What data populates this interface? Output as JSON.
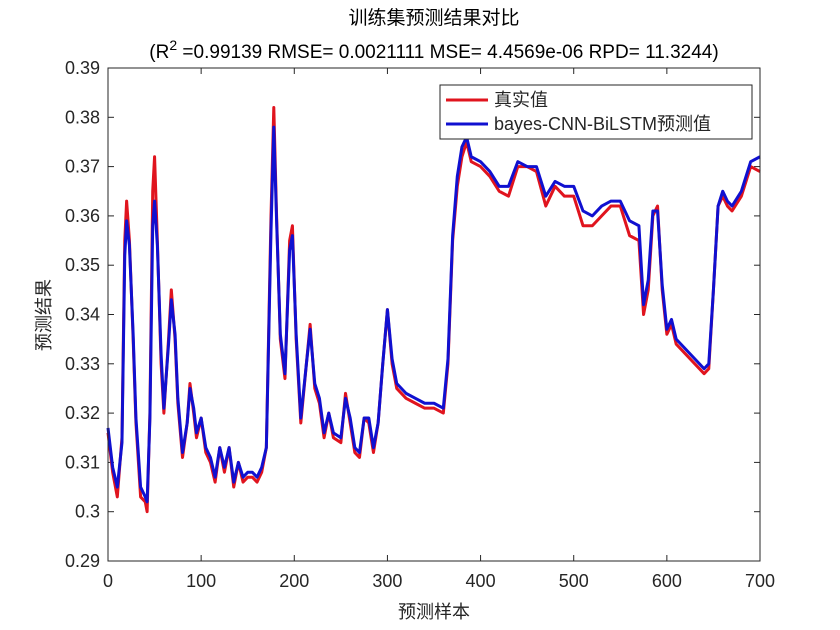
{
  "chart_data": {
    "type": "line",
    "title": "训练集预测结果对比",
    "subtitle": [
      "(R",
      "2",
      " =0.99139 RMSE= 0.0021111 MSE= 4.4569e-06 RPD= 11.3244)"
    ],
    "x_label": "预测样本",
    "y_label": "预测结果",
    "xlim": [
      0,
      700
    ],
    "xticks": [
      0,
      100,
      200,
      300,
      400,
      500,
      600,
      700
    ],
    "ylim": [
      0.29,
      0.39
    ],
    "yticks": [
      0.29,
      0.3,
      0.31,
      0.32,
      0.33,
      0.34,
      0.35,
      0.36,
      0.37,
      0.38,
      0.39
    ],
    "legend": "northeast",
    "grid": false,
    "x": [
      0,
      5,
      10,
      15,
      18,
      20,
      23,
      27,
      30,
      35,
      40,
      42,
      45,
      48,
      50,
      53,
      57,
      60,
      65,
      68,
      72,
      75,
      80,
      85,
      88,
      92,
      95,
      100,
      105,
      110,
      115,
      120,
      125,
      130,
      135,
      140,
      145,
      150,
      155,
      160,
      165,
      170,
      175,
      178,
      181,
      185,
      190,
      195,
      198,
      202,
      207,
      213,
      217,
      222,
      227,
      232,
      237,
      242,
      250,
      255,
      260,
      265,
      270,
      275,
      280,
      285,
      290,
      295,
      300,
      305,
      310,
      320,
      330,
      340,
      350,
      360,
      365,
      370,
      375,
      380,
      385,
      390,
      400,
      410,
      420,
      430,
      440,
      450,
      460,
      470,
      480,
      490,
      500,
      510,
      520,
      530,
      540,
      550,
      560,
      570,
      575,
      580,
      585,
      590,
      595,
      600,
      605,
      610,
      620,
      630,
      640,
      645,
      650,
      655,
      660,
      665,
      670,
      680,
      690,
      700
    ],
    "series": [
      {
        "name": "真实值",
        "color": "#e0141e",
        "values": [
          0.316,
          0.308,
          0.303,
          0.315,
          0.355,
          0.363,
          0.355,
          0.335,
          0.318,
          0.303,
          0.302,
          0.3,
          0.32,
          0.365,
          0.372,
          0.355,
          0.33,
          0.32,
          0.335,
          0.345,
          0.335,
          0.322,
          0.311,
          0.318,
          0.326,
          0.32,
          0.315,
          0.319,
          0.312,
          0.31,
          0.306,
          0.313,
          0.308,
          0.313,
          0.305,
          0.31,
          0.306,
          0.307,
          0.307,
          0.306,
          0.308,
          0.313,
          0.36,
          0.382,
          0.36,
          0.335,
          0.327,
          0.355,
          0.358,
          0.335,
          0.318,
          0.33,
          0.338,
          0.325,
          0.322,
          0.315,
          0.32,
          0.315,
          0.314,
          0.324,
          0.318,
          0.312,
          0.311,
          0.319,
          0.318,
          0.312,
          0.318,
          0.33,
          0.341,
          0.33,
          0.325,
          0.323,
          0.322,
          0.321,
          0.321,
          0.32,
          0.33,
          0.355,
          0.366,
          0.372,
          0.375,
          0.371,
          0.37,
          0.368,
          0.365,
          0.364,
          0.37,
          0.37,
          0.369,
          0.362,
          0.366,
          0.364,
          0.364,
          0.358,
          0.358,
          0.36,
          0.362,
          0.362,
          0.356,
          0.355,
          0.34,
          0.345,
          0.36,
          0.362,
          0.345,
          0.336,
          0.338,
          0.334,
          0.332,
          0.33,
          0.328,
          0.329,
          0.345,
          0.362,
          0.364,
          0.362,
          0.361,
          0.364,
          0.37,
          0.369
        ]
      },
      {
        "name": "bayes-CNN-BiLSTM预测值",
        "color": "#1010d0",
        "values": [
          0.317,
          0.309,
          0.305,
          0.314,
          0.352,
          0.359,
          0.354,
          0.336,
          0.319,
          0.305,
          0.303,
          0.302,
          0.319,
          0.358,
          0.363,
          0.354,
          0.332,
          0.321,
          0.334,
          0.343,
          0.336,
          0.323,
          0.312,
          0.318,
          0.325,
          0.321,
          0.316,
          0.319,
          0.313,
          0.311,
          0.307,
          0.313,
          0.309,
          0.313,
          0.306,
          0.31,
          0.307,
          0.308,
          0.308,
          0.307,
          0.309,
          0.313,
          0.357,
          0.378,
          0.359,
          0.336,
          0.328,
          0.353,
          0.356,
          0.336,
          0.319,
          0.33,
          0.337,
          0.326,
          0.323,
          0.316,
          0.32,
          0.316,
          0.315,
          0.323,
          0.319,
          0.313,
          0.312,
          0.319,
          0.319,
          0.313,
          0.318,
          0.33,
          0.341,
          0.331,
          0.326,
          0.324,
          0.323,
          0.322,
          0.322,
          0.321,
          0.331,
          0.356,
          0.368,
          0.374,
          0.376,
          0.372,
          0.371,
          0.369,
          0.366,
          0.366,
          0.371,
          0.37,
          0.37,
          0.364,
          0.367,
          0.366,
          0.366,
          0.361,
          0.36,
          0.362,
          0.363,
          0.363,
          0.359,
          0.358,
          0.342,
          0.347,
          0.361,
          0.361,
          0.346,
          0.337,
          0.339,
          0.335,
          0.333,
          0.331,
          0.329,
          0.33,
          0.345,
          0.362,
          0.365,
          0.363,
          0.362,
          0.365,
          0.371,
          0.372
        ]
      }
    ]
  }
}
